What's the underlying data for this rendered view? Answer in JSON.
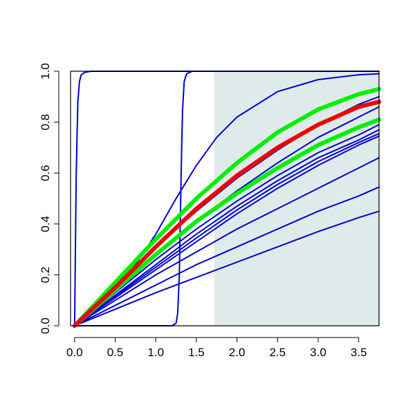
{
  "chart_data": {
    "type": "line",
    "xlim": [
      -0.05,
      3.75
    ],
    "ylim": [
      0,
      1
    ],
    "grid": false,
    "shaded_region": {
      "x": [
        1.72,
        3.75
      ],
      "color": "#dfeaea"
    },
    "x_ticks": [
      0.0,
      0.5,
      1.0,
      1.5,
      2.0,
      2.5,
      3.0,
      3.5
    ],
    "x_tick_labels": [
      "0.0",
      "0.5",
      "1.0",
      "1.5",
      "2.0",
      "2.5",
      "3.0",
      "3.5"
    ],
    "y_ticks": [
      0.0,
      0.2,
      0.4,
      0.6,
      0.8,
      1.0
    ],
    "y_tick_labels": [
      "0.0",
      "0.2",
      "0.4",
      "0.6",
      "0.8",
      "1.0"
    ],
    "series": [
      {
        "color": "#0000cc",
        "width": 2,
        "x": [
          0,
          0.01,
          0.02,
          0.04,
          0.06,
          0.08,
          0.12,
          0.2,
          0.5,
          1.0,
          2.0,
          3.75
        ],
        "y": [
          0,
          0.3,
          0.6,
          0.88,
          0.96,
          0.985,
          0.995,
          1.0,
          1.0,
          1.0,
          1.0,
          1.0
        ]
      },
      {
        "color": "#0000cc",
        "width": 2,
        "x": [
          0,
          1.2,
          1.25,
          1.27,
          1.29,
          1.3,
          1.31,
          1.32,
          1.33,
          1.35,
          1.38,
          1.45,
          2.0,
          3.75
        ],
        "y": [
          0,
          0.0,
          0.01,
          0.05,
          0.2,
          0.38,
          0.55,
          0.72,
          0.85,
          0.96,
          0.99,
          1.0,
          1.0,
          1.0
        ]
      },
      {
        "color": "#0000cc",
        "width": 2,
        "x": [
          0,
          0.25,
          0.5,
          0.75,
          1.0,
          1.25,
          1.5,
          1.75,
          2.0,
          2.5,
          3.0,
          3.5,
          3.75
        ],
        "y": [
          0,
          0.06,
          0.14,
          0.24,
          0.36,
          0.5,
          0.63,
          0.74,
          0.82,
          0.92,
          0.967,
          0.986,
          0.99
        ]
      },
      {
        "color": "#0000cc",
        "width": 2,
        "x": [
          0,
          0.5,
          1.0,
          1.5,
          2.0,
          2.5,
          3.0,
          3.5,
          3.75
        ],
        "y": [
          0,
          0.16,
          0.31,
          0.45,
          0.58,
          0.69,
          0.79,
          0.87,
          0.9
        ]
      },
      {
        "color": "#0000cc",
        "width": 2,
        "x": [
          0,
          0.5,
          1.0,
          1.5,
          2.0,
          2.5,
          3.0,
          3.5,
          3.75
        ],
        "y": [
          0,
          0.14,
          0.28,
          0.41,
          0.53,
          0.64,
          0.74,
          0.82,
          0.86
        ]
      },
      {
        "color": "#0000cc",
        "width": 2,
        "x": [
          0,
          0.5,
          1.0,
          1.5,
          2.0,
          2.5,
          3.0,
          3.5,
          3.75
        ],
        "y": [
          0,
          0.13,
          0.26,
          0.38,
          0.49,
          0.59,
          0.68,
          0.75,
          0.79
        ]
      },
      {
        "color": "#0000cc",
        "width": 2,
        "x": [
          0,
          0.5,
          1.0,
          1.5,
          2.0,
          2.5,
          3.0,
          3.5,
          3.75
        ],
        "y": [
          0,
          0.12,
          0.24,
          0.36,
          0.47,
          0.57,
          0.66,
          0.73,
          0.77
        ]
      },
      {
        "color": "#0000cc",
        "width": 2,
        "x": [
          0,
          0.5,
          1.0,
          1.5,
          2.0,
          2.5,
          3.0,
          3.5,
          3.75
        ],
        "y": [
          0,
          0.115,
          0.23,
          0.345,
          0.455,
          0.555,
          0.645,
          0.72,
          0.755
        ]
      },
      {
        "color": "#0000cc",
        "width": 2,
        "x": [
          0,
          0.5,
          1.0,
          1.5,
          2.0,
          2.5,
          3.0,
          3.5,
          3.75
        ],
        "y": [
          0,
          0.11,
          0.22,
          0.33,
          0.44,
          0.54,
          0.63,
          0.71,
          0.745
        ]
      },
      {
        "color": "#0000cc",
        "width": 2,
        "x": [
          0,
          0.5,
          1.0,
          1.5,
          2.0,
          2.5,
          3.0,
          3.5,
          3.75
        ],
        "y": [
          0,
          0.1,
          0.2,
          0.29,
          0.38,
          0.46,
          0.54,
          0.62,
          0.66
        ]
      },
      {
        "color": "#0000cc",
        "width": 2,
        "x": [
          0,
          0.5,
          1.0,
          1.5,
          2.0,
          2.5,
          3.0,
          3.5,
          3.75
        ],
        "y": [
          0,
          0.08,
          0.16,
          0.24,
          0.31,
          0.38,
          0.45,
          0.51,
          0.545
        ]
      },
      {
        "color": "#0000cc",
        "width": 2,
        "x": [
          0,
          0.5,
          1.0,
          1.5,
          2.0,
          2.5,
          3.0,
          3.5,
          3.75
        ],
        "y": [
          0,
          0.065,
          0.13,
          0.19,
          0.25,
          0.31,
          0.37,
          0.425,
          0.45
        ]
      },
      {
        "color": "#00ee00",
        "width": 6,
        "x": [
          0,
          0.5,
          1.0,
          1.5,
          2.0,
          2.5,
          3.0,
          3.5,
          3.75
        ],
        "y": [
          0,
          0.17,
          0.34,
          0.5,
          0.64,
          0.76,
          0.85,
          0.91,
          0.93
        ]
      },
      {
        "color": "#00ee00",
        "width": 6,
        "x": [
          0,
          0.5,
          1.0,
          1.5,
          2.0,
          2.5,
          3.0,
          3.5,
          3.75
        ],
        "y": [
          0,
          0.14,
          0.28,
          0.41,
          0.52,
          0.62,
          0.71,
          0.78,
          0.81
        ]
      },
      {
        "color": "#ee0000",
        "width": 6,
        "x": [
          0,
          0.5,
          1.0,
          1.5,
          2.0,
          2.5,
          3.0,
          3.5,
          3.75
        ],
        "y": [
          0,
          0.15,
          0.31,
          0.46,
          0.59,
          0.7,
          0.79,
          0.86,
          0.88
        ]
      }
    ]
  }
}
